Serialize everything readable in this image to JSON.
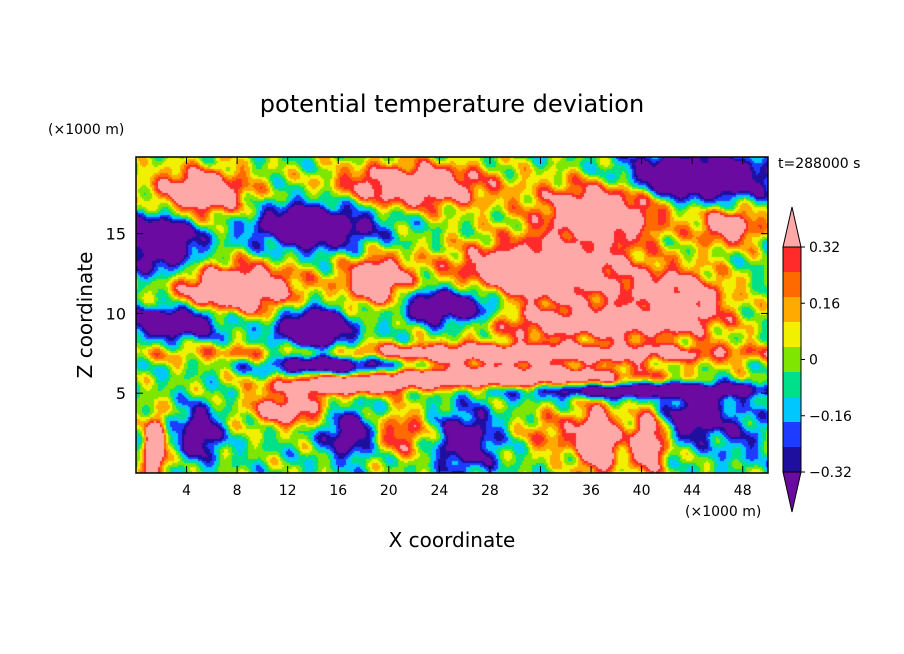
{
  "chart_data": {
    "type": "heatmap",
    "title": "potential temperature deviation",
    "time_label": "t=288000 s",
    "xlabel": "X coordinate",
    "ylabel": "Z coordinate",
    "x_unit": "(×1000 m)",
    "y_unit": "(×1000 m)",
    "xlim": [
      0,
      50
    ],
    "ylim": [
      0,
      19.8
    ],
    "x_ticks": [
      4,
      8,
      12,
      16,
      20,
      24,
      28,
      32,
      36,
      40,
      44,
      48
    ],
    "y_ticks": [
      5,
      10,
      15
    ],
    "colorbar": {
      "levels": [
        -0.4,
        -0.32,
        -0.24,
        -0.16,
        -0.08,
        0,
        0.08,
        0.16,
        0.24,
        0.32,
        0.4
      ],
      "labels": [
        "0.32",
        "0.16",
        "0",
        "−0.16",
        "−0.32"
      ],
      "label_values": [
        0.32,
        0.16,
        0,
        -0.16,
        -0.32
      ],
      "colors": [
        "#6a0aa0",
        "#1f0f9f",
        "#1e3cff",
        "#00c8ff",
        "#00e08a",
        "#7ee600",
        "#f0f000",
        "#ffaa00",
        "#ff6a00",
        "#ff2a2a",
        "#ffa8a8"
      ]
    },
    "field": {
      "base": 0.0,
      "components": [
        {
          "x": 5,
          "z": 17.5,
          "sx": 4,
          "sz": 1.6,
          "a": 0.7
        },
        {
          "x": 22,
          "z": 18,
          "sx": 6,
          "sz": 1.4,
          "a": 0.7
        },
        {
          "x": 37,
          "z": 16.5,
          "sx": 5,
          "sz": 2.0,
          "a": 0.75
        },
        {
          "x": 47,
          "z": 15.5,
          "sx": 2.5,
          "sz": 1.2,
          "a": 0.6
        },
        {
          "x": 14,
          "z": 15.5,
          "sx": 5,
          "sz": 1.5,
          "a": -0.65
        },
        {
          "x": 44,
          "z": 18.5,
          "sx": 6,
          "sz": 1.5,
          "a": -0.75
        },
        {
          "x": 2,
          "z": 14.5,
          "sx": 3,
          "sz": 2.0,
          "a": -0.7
        },
        {
          "x": 8,
          "z": 11.5,
          "sx": 5,
          "sz": 1.6,
          "a": 0.8
        },
        {
          "x": 19,
          "z": 12,
          "sx": 2.5,
          "sz": 1.6,
          "a": 0.75
        },
        {
          "x": 32,
          "z": 12.5,
          "sx": 7,
          "sz": 2.0,
          "a": 0.8
        },
        {
          "x": 43,
          "z": 11,
          "sx": 4,
          "sz": 1.8,
          "a": 0.55
        },
        {
          "x": 25,
          "z": 10.5,
          "sx": 4,
          "sz": 1.2,
          "a": -0.75
        },
        {
          "x": 3,
          "z": 9.5,
          "sx": 4,
          "sz": 1.0,
          "a": -0.7
        },
        {
          "x": 14,
          "z": 9.0,
          "sx": 3,
          "sz": 1.5,
          "a": -0.7
        },
        {
          "x": 36,
          "z": 9.3,
          "sx": 9,
          "sz": 1.0,
          "a": 0.55
        },
        {
          "x": 28,
          "z": 7.5,
          "sx": 22,
          "sz": 0.6,
          "a": 0.7
        },
        {
          "x": 16,
          "z": 6.8,
          "sx": 6,
          "sz": 0.8,
          "a": -0.7
        },
        {
          "x": 28,
          "z": 6.0,
          "sx": 12,
          "sz": 0.7,
          "a": 0.85
        },
        {
          "x": 16,
          "z": 5.5,
          "sx": 5,
          "sz": 0.6,
          "a": 0.7
        },
        {
          "x": 40,
          "z": 5.2,
          "sx": 10,
          "sz": 0.5,
          "a": -0.7
        },
        {
          "x": 1.5,
          "z": 1.5,
          "sx": 0.8,
          "sz": 2.0,
          "a": 0.9
        },
        {
          "x": 5,
          "z": 2.5,
          "sx": 1.5,
          "sz": 1.5,
          "a": -0.6
        },
        {
          "x": 12,
          "z": 4,
          "sx": 3,
          "sz": 1.0,
          "a": 0.6
        },
        {
          "x": 17,
          "z": 2.5,
          "sx": 2,
          "sz": 1.5,
          "a": -0.55
        },
        {
          "x": 21,
          "z": 2.5,
          "sx": 2.5,
          "sz": 1.5,
          "a": 0.4
        },
        {
          "x": 26,
          "z": 2.0,
          "sx": 2.5,
          "sz": 2.0,
          "a": -0.5
        },
        {
          "x": 33,
          "z": 2.5,
          "sx": 2.5,
          "sz": 1.5,
          "a": 0.3
        },
        {
          "x": 36.5,
          "z": 2.0,
          "sx": 1.5,
          "sz": 2.0,
          "a": 0.9
        },
        {
          "x": 40.5,
          "z": 2.0,
          "sx": 1.5,
          "sz": 2.0,
          "a": 0.7
        },
        {
          "x": 44,
          "z": 3.5,
          "sx": 2.5,
          "sz": 1.5,
          "a": -0.5
        },
        {
          "x": 48,
          "z": 2.5,
          "sx": 2,
          "sz": 2.0,
          "a": -0.2
        }
      ]
    }
  }
}
